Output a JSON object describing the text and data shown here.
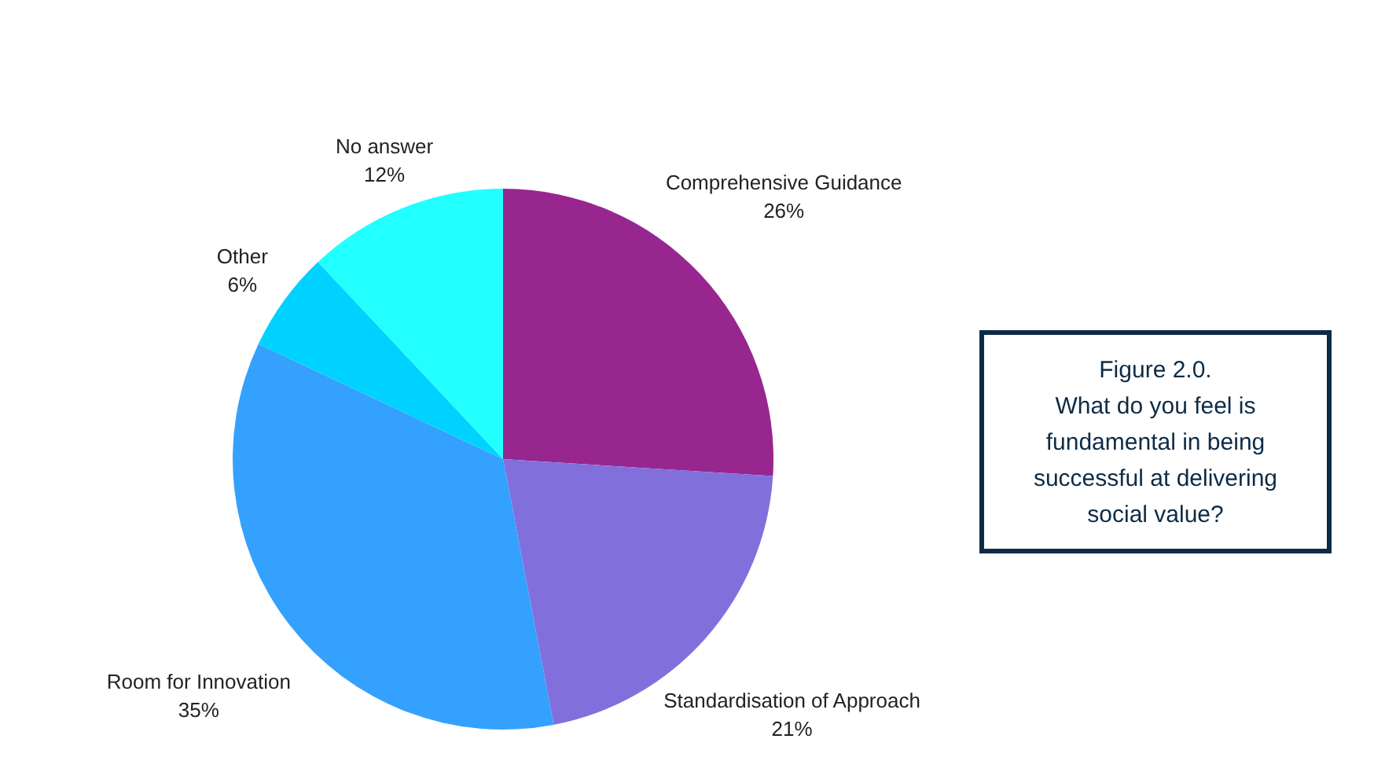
{
  "chart_data": {
    "type": "pie",
    "title": "Figure 2.0.",
    "subtitle": "What do you feel is fundamental in being successful at delivering social value?",
    "categories": [
      "Comprehensive Guidance",
      "Standardisation of Approach",
      "Room for Innovation",
      "Other",
      "No answer"
    ],
    "values": [
      26,
      21,
      35,
      6,
      12
    ],
    "value_labels": [
      "26%",
      "21%",
      "35%",
      "6%",
      "12%"
    ],
    "colors": [
      "#97268f",
      "#8170dc",
      "#33a1fd",
      "#00d2ff",
      "#22ffff"
    ]
  }
}
